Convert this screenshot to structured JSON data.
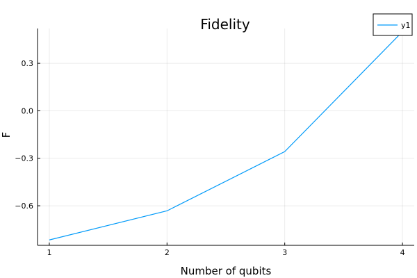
{
  "chart_data": {
    "type": "line",
    "title": "Fidelity",
    "xlabel": "Number of qubits",
    "ylabel": "F",
    "x": [
      1,
      2,
      3,
      4
    ],
    "xticks": [
      "1",
      "2",
      "3",
      "4"
    ],
    "yticks": [
      "0.3",
      "0.0",
      "−0.3",
      "−0.6"
    ],
    "ytick_values": [
      0.3,
      0.0,
      -0.3,
      -0.6
    ],
    "xlim": [
      0.9,
      4.1
    ],
    "ylim": [
      -0.85,
      0.52
    ],
    "series": [
      {
        "name": "y1",
        "color": "#009af9",
        "values": [
          -0.816,
          -0.632,
          -0.258,
          0.5
        ]
      }
    ],
    "grid": true,
    "legend": "top-right"
  }
}
